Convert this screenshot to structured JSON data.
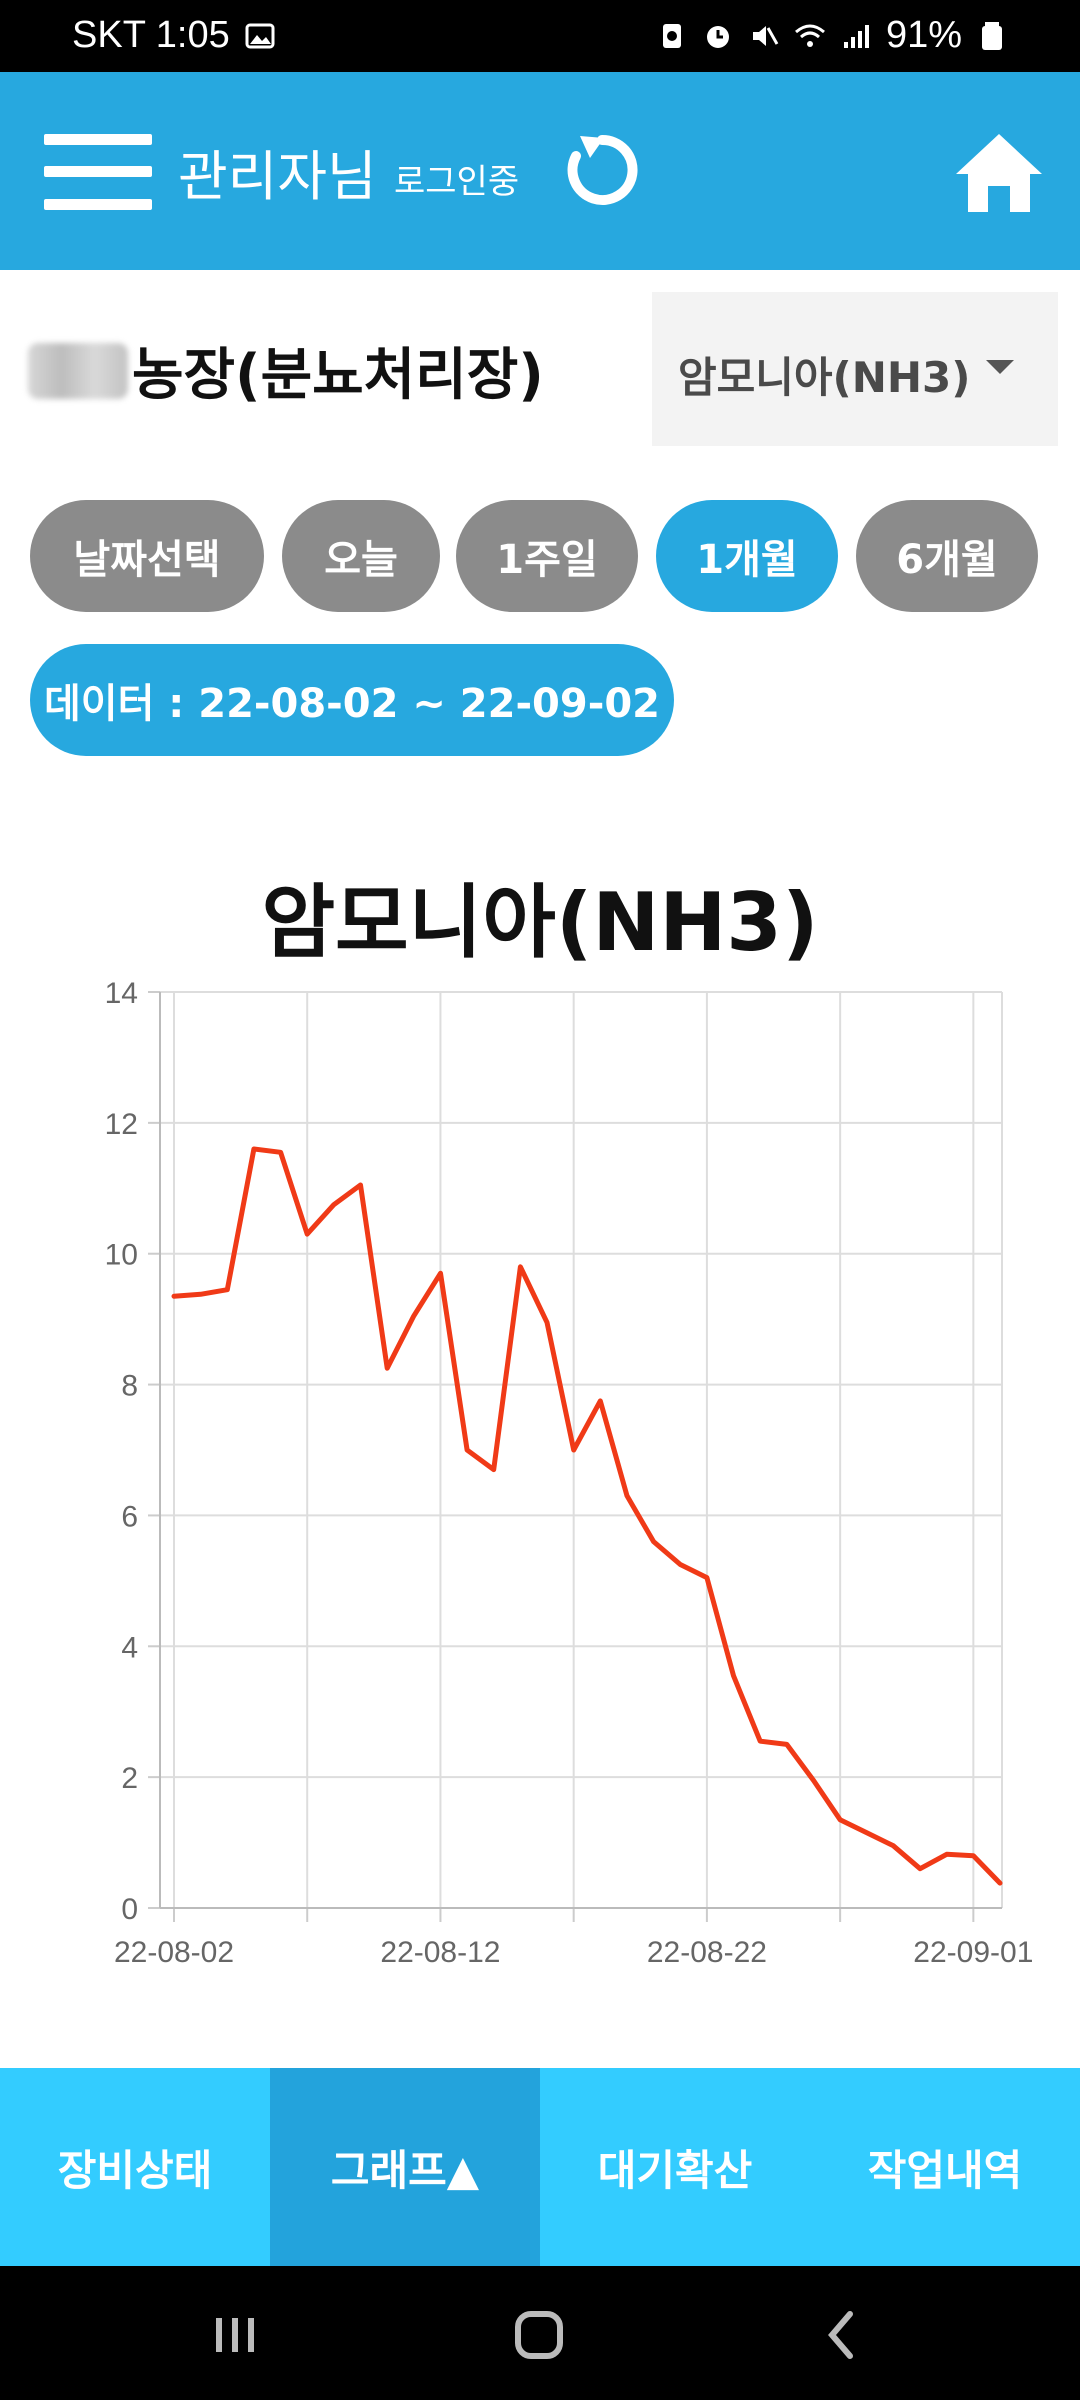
{
  "status_bar": {
    "carrier_time": "SKT 1:05",
    "battery": "91%"
  },
  "header": {
    "title": "관리자님",
    "subtitle": "로그인중"
  },
  "farm": {
    "name": "농장(분뇨처리장)",
    "select_value": "암모니아(NH3)"
  },
  "filters": {
    "date_select": "날짜선택",
    "today": "오늘",
    "week": "1주일",
    "month": "1개월",
    "six_months": "6개월",
    "active": "1개월"
  },
  "range_label": "데이터 : 22-08-02 ~ 22-09-02",
  "chart_data": {
    "type": "line",
    "title": "암모니아(NH3)",
    "xlabel": "",
    "ylabel": "",
    "ylim": [
      0,
      14
    ],
    "y_ticks": [
      "0",
      "2",
      "4",
      "6",
      "8",
      "10",
      "12",
      "14"
    ],
    "x_ticks": [
      "22-08-02",
      "22-08-12",
      "22-08-22",
      "22-09-01"
    ],
    "grid": true,
    "line_color": "#f03a17",
    "x": [
      "22-08-02",
      "22-08-03",
      "22-08-04",
      "22-08-05",
      "22-08-06",
      "22-08-07",
      "22-08-08",
      "22-08-09",
      "22-08-10",
      "22-08-11",
      "22-08-12",
      "22-08-13",
      "22-08-14",
      "22-08-15",
      "22-08-16",
      "22-08-17",
      "22-08-18",
      "22-08-19",
      "22-08-20",
      "22-08-21",
      "22-08-22",
      "22-08-23",
      "22-08-24",
      "22-08-25",
      "22-08-26",
      "22-08-27",
      "22-08-28",
      "22-08-29",
      "22-08-30",
      "22-08-31",
      "22-09-01",
      "22-09-02"
    ],
    "values": [
      9.35,
      9.38,
      9.45,
      11.6,
      11.55,
      10.3,
      10.75,
      11.05,
      8.25,
      9.05,
      9.7,
      7.0,
      6.7,
      9.8,
      8.95,
      7.0,
      7.75,
      6.3,
      5.6,
      5.25,
      5.05,
      3.55,
      2.55,
      2.5,
      1.95,
      1.35,
      1.15,
      0.95,
      0.6,
      0.82,
      0.8,
      0.38
    ]
  },
  "bottom_nav": {
    "items": [
      "장비상태",
      "그래프▲",
      "대기확산",
      "작업내역"
    ],
    "active": "그래프▲"
  },
  "colors": {
    "primary": "#27a8df",
    "bottom_nav": "#33ccff",
    "inactive_pill": "#8b8b8b"
  }
}
